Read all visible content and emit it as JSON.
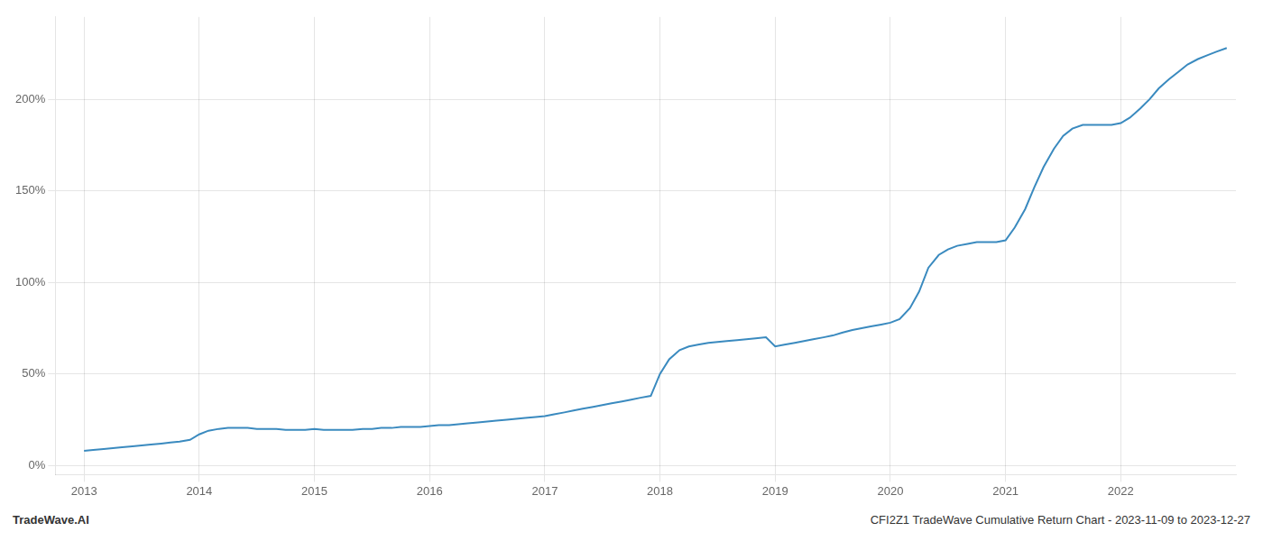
{
  "chart_data": {
    "type": "line",
    "annotations": [
      "TradeWave.AI",
      "CFI2Z1 TradeWave Cumulative Return Chart - 2023-11-09 to 2023-12-27"
    ],
    "color": "#3a8abf",
    "x": [
      2013.0,
      2013.08,
      2013.17,
      2013.25,
      2013.33,
      2013.42,
      2013.5,
      2013.58,
      2013.67,
      2013.75,
      2013.83,
      2013.92,
      2014.0,
      2014.08,
      2014.17,
      2014.25,
      2014.33,
      2014.42,
      2014.5,
      2014.58,
      2014.67,
      2014.75,
      2014.83,
      2014.92,
      2015.0,
      2015.08,
      2015.17,
      2015.25,
      2015.33,
      2015.42,
      2015.5,
      2015.58,
      2015.67,
      2015.75,
      2015.83,
      2015.92,
      2016.0,
      2016.08,
      2016.17,
      2016.25,
      2016.33,
      2016.42,
      2016.5,
      2016.58,
      2016.67,
      2016.75,
      2016.83,
      2016.92,
      2017.0,
      2017.08,
      2017.17,
      2017.25,
      2017.33,
      2017.42,
      2017.5,
      2017.58,
      2017.67,
      2017.75,
      2017.83,
      2017.92,
      2018.0,
      2018.08,
      2018.17,
      2018.25,
      2018.33,
      2018.42,
      2018.5,
      2018.58,
      2018.67,
      2018.75,
      2018.83,
      2018.92,
      2019.0,
      2019.08,
      2019.17,
      2019.25,
      2019.33,
      2019.42,
      2019.5,
      2019.58,
      2019.67,
      2019.75,
      2019.83,
      2019.92,
      2020.0,
      2020.08,
      2020.17,
      2020.25,
      2020.33,
      2020.42,
      2020.5,
      2020.58,
      2020.67,
      2020.75,
      2020.83,
      2020.92,
      2021.0,
      2021.08,
      2021.17,
      2021.25,
      2021.33,
      2021.42,
      2021.5,
      2021.58,
      2021.67,
      2021.75,
      2021.83,
      2021.92,
      2022.0,
      2022.08,
      2022.17,
      2022.25,
      2022.33,
      2022.42,
      2022.5,
      2022.58,
      2022.67,
      2022.75,
      2022.83,
      2022.92
    ],
    "values": [
      8,
      8.5,
      9,
      9.5,
      10,
      10.5,
      11,
      11.5,
      12,
      12.5,
      13,
      14,
      17,
      19,
      20,
      20.5,
      20.5,
      20.5,
      20,
      20,
      20,
      19.5,
      19.5,
      19.5,
      20,
      19.5,
      19.5,
      19.5,
      19.5,
      20,
      20,
      20.5,
      20.5,
      21,
      21,
      21,
      21.5,
      22,
      22,
      22.5,
      23,
      23.5,
      24,
      24.5,
      25,
      25.5,
      26,
      26.5,
      27,
      28,
      29,
      30,
      31,
      32,
      33,
      34,
      35,
      36,
      37,
      38,
      50,
      58,
      63,
      65,
      66,
      67,
      67.5,
      68,
      68.5,
      69,
      69.5,
      70,
      65,
      66,
      67,
      68,
      69,
      70,
      71,
      72.5,
      74,
      75,
      76,
      77,
      78,
      80,
      86,
      95,
      108,
      115,
      118,
      120,
      121,
      122,
      122,
      122,
      123,
      130,
      140,
      152,
      163,
      173,
      180,
      184,
      186,
      186,
      186,
      186,
      187,
      190,
      195,
      200,
      206,
      211,
      215,
      219,
      222,
      224,
      226,
      228
    ],
    "xlim": [
      2012.75,
      2023.0
    ],
    "xticks": [
      2013,
      2014,
      2015,
      2016,
      2017,
      2018,
      2019,
      2020,
      2021,
      2022
    ],
    "ylim": [
      -5,
      245
    ],
    "yticks": [
      {
        "value": 0,
        "label": "0%"
      },
      {
        "value": 50,
        "label": "50%"
      },
      {
        "value": 100,
        "label": "100%"
      },
      {
        "value": 150,
        "label": "150%"
      },
      {
        "value": 200,
        "label": "200%"
      }
    ],
    "grid": true
  }
}
